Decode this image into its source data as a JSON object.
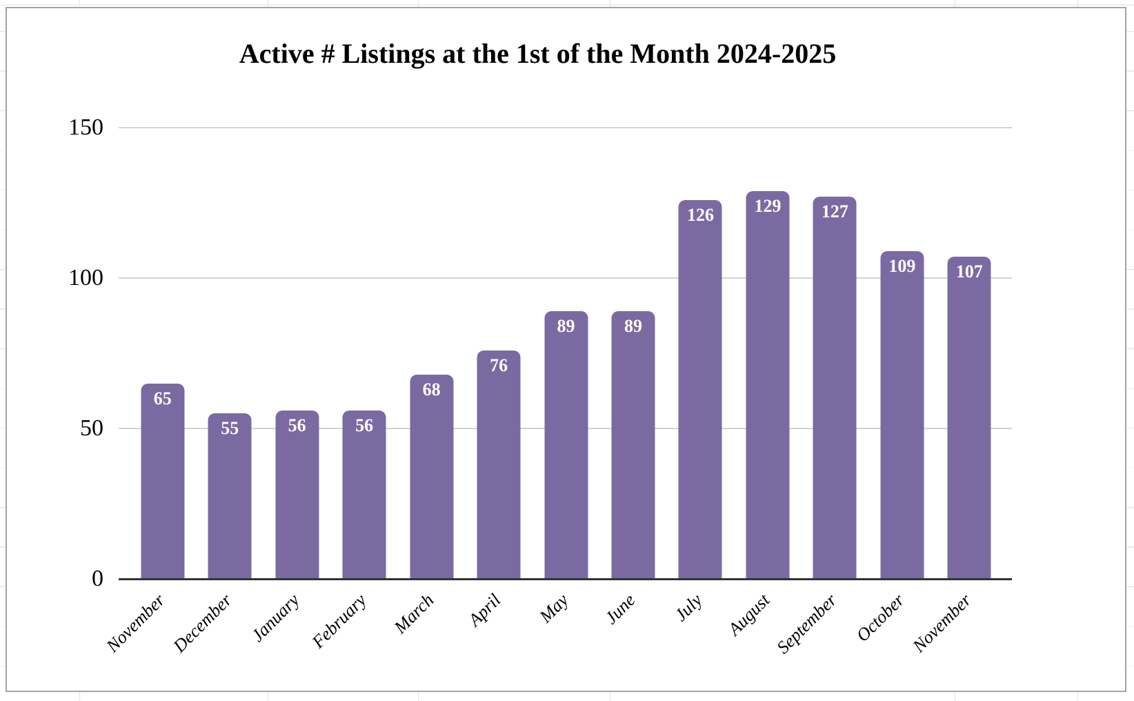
{
  "chart_data": {
    "type": "bar",
    "title": "Active # Listings at the 1st of the Month 2024-2025",
    "categories": [
      "November",
      "December",
      "January",
      "February",
      "March",
      "April",
      "May",
      "June",
      "July",
      "August",
      "September",
      "October",
      "November"
    ],
    "values": [
      65,
      55,
      56,
      56,
      68,
      76,
      89,
      89,
      126,
      129,
      127,
      109,
      107
    ],
    "xlabel": "",
    "ylabel": "",
    "y_ticks": [
      0,
      50,
      100,
      150
    ],
    "ylim": [
      0,
      150
    ],
    "grid": true,
    "legend": "none",
    "bar_color": "#7b6aa1",
    "value_label_color": "#ffffff",
    "gridline_color": "#d2d2d2",
    "axis_line_color": "#333333"
  }
}
